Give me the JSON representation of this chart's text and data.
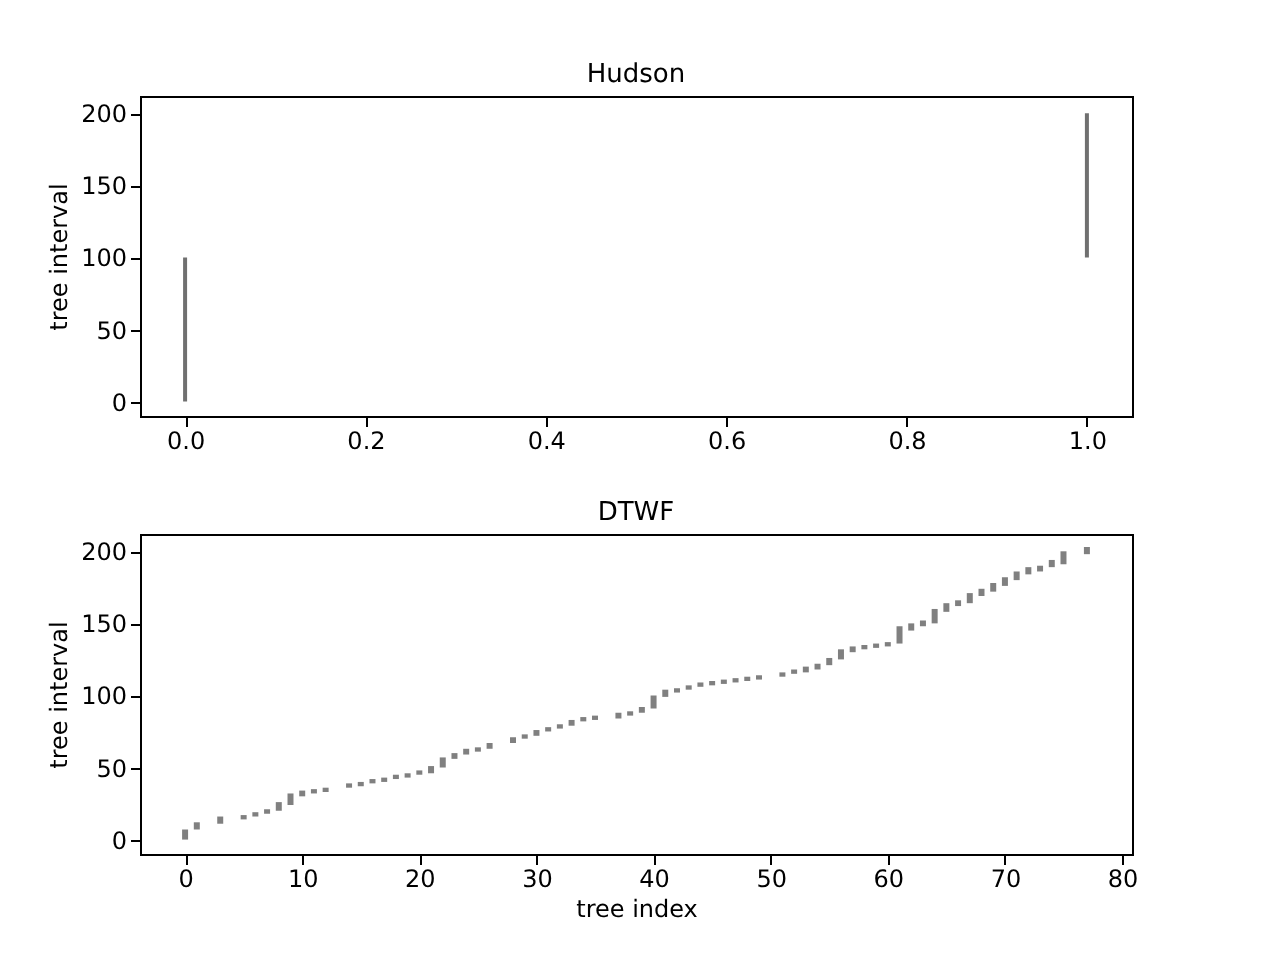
{
  "chart_data": [
    {
      "type": "bar",
      "title": "Hudson",
      "ylabel": "tree interval",
      "x": [
        0,
        1
      ],
      "base": [
        0,
        100
      ],
      "values": [
        100,
        100
      ],
      "color": "#707070",
      "xlim": [
        -0.05,
        1.05
      ],
      "xticks": [
        {
          "value": 0,
          "label": "0.0"
        },
        0.2,
        0.4,
        0.6,
        0.8,
        {
          "value": 1,
          "label": "1.0"
        }
      ],
      "ylim": [
        -10,
        212
      ],
      "yticks": [
        0,
        50,
        100,
        150,
        200
      ],
      "grid": false
    },
    {
      "type": "bar",
      "title": "DTWF",
      "xlabel": "tree index",
      "ylabel": "tree interval",
      "x": [
        0,
        1,
        3,
        5,
        6,
        7,
        8,
        9,
        10,
        11,
        12,
        14,
        15,
        16,
        17,
        18,
        19,
        20,
        21,
        22,
        23,
        24,
        25,
        26,
        28,
        29,
        30,
        31,
        32,
        33,
        34,
        35,
        37,
        38,
        39,
        40,
        41,
        42,
        43,
        44,
        45,
        46,
        47,
        48,
        49,
        51,
        52,
        53,
        54,
        55,
        56,
        57,
        58,
        59,
        60,
        61,
        62,
        63,
        64,
        65,
        66,
        67,
        68,
        69,
        70,
        71,
        72,
        73,
        74,
        75,
        77
      ],
      "base": [
        0,
        7,
        11,
        14,
        16,
        18,
        20,
        24,
        30,
        32,
        33,
        36,
        37,
        39,
        40,
        42,
        43,
        45,
        46,
        50,
        56,
        59,
        61,
        63,
        67,
        70,
        72,
        75,
        77,
        79,
        82,
        83,
        84,
        86,
        88,
        91,
        99,
        102,
        104,
        106,
        107,
        108,
        109,
        110,
        111,
        113,
        115,
        116,
        118,
        121,
        125,
        130,
        132,
        133,
        134,
        136,
        145,
        148,
        150,
        158,
        162,
        164,
        169,
        172,
        176,
        180,
        184,
        186,
        189,
        191,
        198
      ],
      "values": [
        7,
        5,
        5,
        3,
        3,
        3,
        6,
        8,
        4,
        3,
        3,
        3,
        3,
        3,
        3,
        3,
        3,
        3,
        5,
        7,
        4,
        4,
        3,
        4,
        4,
        3,
        4,
        3,
        3,
        4,
        3,
        3,
        4,
        3,
        4,
        9,
        5,
        3,
        3,
        3,
        3,
        3,
        3,
        3,
        3,
        3,
        3,
        4,
        4,
        5,
        7,
        4,
        3,
        3,
        3,
        12,
        5,
        4,
        10,
        6,
        4,
        7,
        5,
        6,
        6,
        6,
        5,
        4,
        5,
        9,
        5
      ],
      "color": "#808080",
      "xlim": [
        -3.85,
        80.85
      ],
      "xticks": [
        0,
        10,
        20,
        30,
        40,
        50,
        60,
        70,
        80
      ],
      "ylim": [
        -10,
        212
      ],
      "yticks": [
        0,
        50,
        100,
        150,
        200
      ],
      "grid": false
    }
  ]
}
